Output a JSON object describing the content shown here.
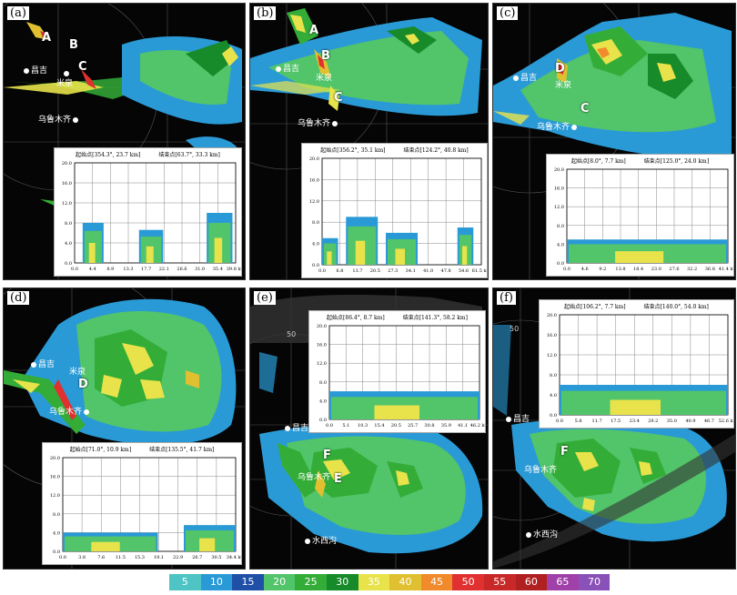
{
  "panels": [
    {
      "label": "(a)",
      "inset": {
        "start": "起始点[354.3°, 23.7 km]",
        "end": "结束点[63.7°, 33.3 km]",
        "yticks": [
          "20.0",
          "16.0",
          "12.0",
          "8.0",
          "4.0",
          "0.0"
        ],
        "xticks": [
          "0.0",
          "4.4",
          "8.9",
          "13.3",
          "17.7",
          "22.1",
          "26.6",
          "31.0",
          "35.4",
          "39.8 km"
        ]
      },
      "cities": [
        {
          "name": "昌吉"
        },
        {
          "name": "米泉"
        },
        {
          "name": "乌鲁木齐"
        }
      ],
      "marks": [
        "A",
        "B",
        "C"
      ]
    },
    {
      "label": "(b)",
      "inset": {
        "start": "起始点[356.2°, 35.1 km]",
        "end": "结束点[124.2°, 40.8 km]",
        "yticks": [
          "20.0",
          "16.0",
          "12.0",
          "8.0",
          "4.0",
          "0.0"
        ],
        "xticks": [
          "0.0",
          "6.8",
          "13.7",
          "20.5",
          "27.3",
          "34.1",
          "41.0",
          "47.8",
          "54.6",
          "61.5 km"
        ]
      },
      "cities": [
        {
          "name": "昌吉"
        },
        {
          "name": "米泉"
        },
        {
          "name": "乌鲁木齐"
        }
      ],
      "marks": [
        "A",
        "B",
        "C"
      ]
    },
    {
      "label": "(c)",
      "inset": {
        "start": "起始点[8.0°, 7.7 km]",
        "end": "结束点[125.0°, 24.0 km]",
        "yticks": [
          "20.0",
          "16.0",
          "12.0",
          "8.0",
          "4.0",
          "0.0"
        ],
        "xticks": [
          "0.0",
          "4.6",
          "9.2",
          "13.8",
          "18.4",
          "23.0",
          "27.6",
          "32.2",
          "36.8",
          "41.4 km"
        ]
      },
      "cities": [
        {
          "name": "昌吉"
        },
        {
          "name": "米泉"
        },
        {
          "name": "乌鲁木齐"
        }
      ],
      "marks": [
        "D",
        "C"
      ]
    },
    {
      "label": "(d)",
      "inset": {
        "start": "起始点[71.0°, 10.9 km]",
        "end": "结束点[135.5°, 41.7 km]",
        "yticks": [
          "20.0",
          "16.0",
          "12.0",
          "8.0",
          "4.0",
          "0.0"
        ],
        "xticks": [
          "0.0",
          "3.8",
          "7.6",
          "11.5",
          "15.3",
          "19.1",
          "22.9",
          "26.7",
          "30.5",
          "34.4 km"
        ]
      },
      "cities": [
        {
          "name": "昌吉"
        },
        {
          "name": "米泉"
        },
        {
          "name": "乌鲁木齐"
        }
      ],
      "marks": [
        "D"
      ]
    },
    {
      "label": "(e)",
      "inset": {
        "start": "起始点[86.4°, 8.7 km]",
        "end": "结束点[141.3°, 58.2 km]",
        "yticks": [
          "20.0",
          "16.0",
          "12.0",
          "8.0",
          "4.0",
          "0.0"
        ],
        "xticks": [
          "0.0",
          "5.1",
          "10.3",
          "15.4",
          "20.5",
          "25.7",
          "30.8",
          "35.9",
          "41.1",
          "46.2 km"
        ]
      },
      "cities": [
        {
          "name": "昌吉"
        },
        {
          "name": "乌鲁木齐"
        },
        {
          "name": "水西沟"
        }
      ],
      "marks": [
        "F",
        "E"
      ],
      "ring": "50"
    },
    {
      "label": "(f)",
      "inset": {
        "start": "起始点[106.2°, 7.7 km]",
        "end": "结束点[140.0°, 54.0 km]",
        "yticks": [
          "20.0",
          "16.0",
          "12.0",
          "8.0",
          "4.0",
          "0.0"
        ],
        "xticks": [
          "0.0",
          "5.8",
          "11.7",
          "17.5",
          "23.4",
          "29.2",
          "35.0",
          "40.9",
          "46.7",
          "52.6 km"
        ]
      },
      "cities": [
        {
          "name": "昌吉"
        },
        {
          "name": "乌鲁木齐"
        },
        {
          "name": "水西沟"
        }
      ],
      "marks": [
        "F"
      ],
      "ring": "50"
    }
  ],
  "legend": [
    {
      "value": "5",
      "color": "#4ec4c4"
    },
    {
      "value": "10",
      "color": "#2a9ad6"
    },
    {
      "value": "15",
      "color": "#1f4fa6"
    },
    {
      "value": "20",
      "color": "#52c46a"
    },
    {
      "value": "25",
      "color": "#34ad38"
    },
    {
      "value": "30",
      "color": "#178a2a"
    },
    {
      "value": "35",
      "color": "#e8e34a"
    },
    {
      "value": "40",
      "color": "#e0c030"
    },
    {
      "value": "45",
      "color": "#f08a2a"
    },
    {
      "value": "50",
      "color": "#e03030"
    },
    {
      "value": "55",
      "color": "#c82828"
    },
    {
      "value": "60",
      "color": "#b02020"
    },
    {
      "value": "65",
      "color": "#a040a8"
    },
    {
      "value": "70",
      "color": "#8a52b8"
    }
  ]
}
